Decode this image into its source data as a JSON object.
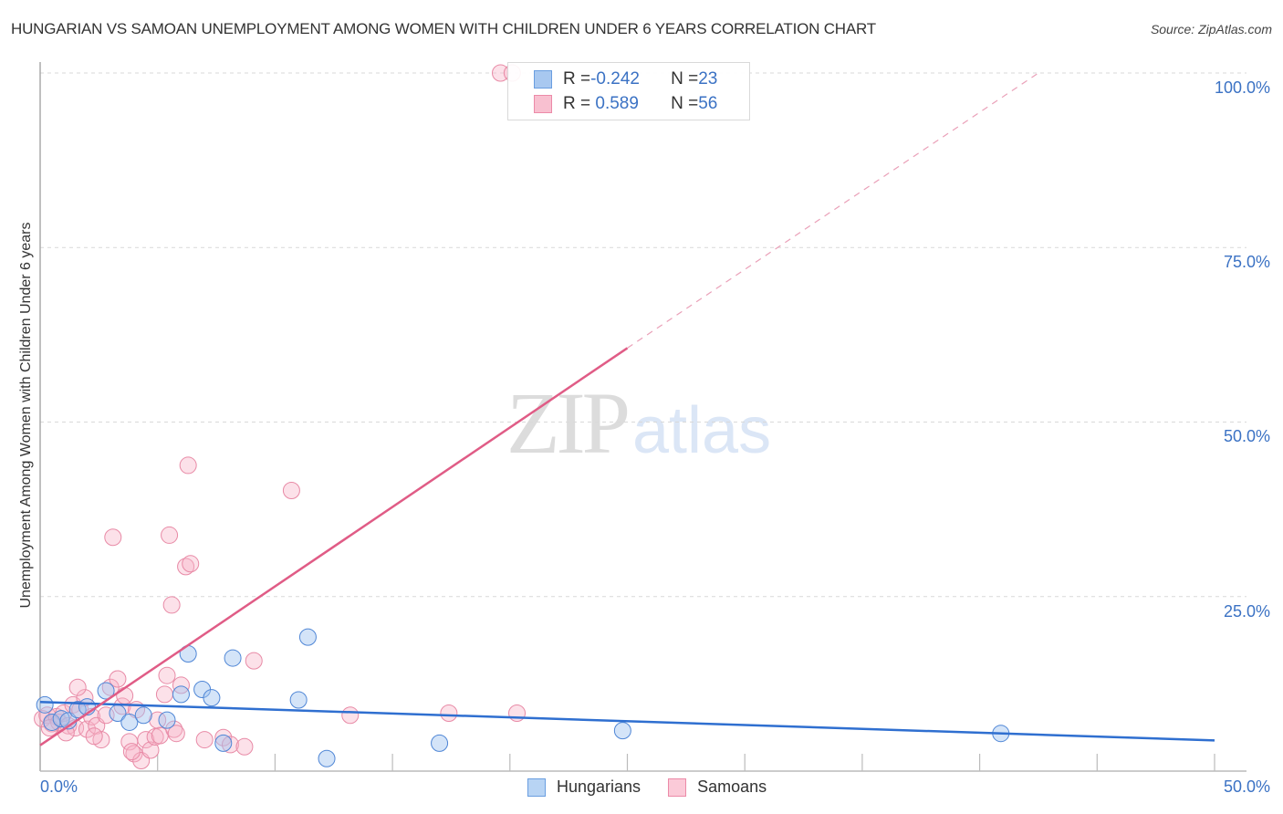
{
  "header": {
    "title": "HUNGARIAN VS SAMOAN UNEMPLOYMENT AMONG WOMEN WITH CHILDREN UNDER 6 YEARS CORRELATION CHART",
    "source": "Source: ZipAtlas.com"
  },
  "watermark": {
    "zip": "ZIP",
    "atlas": "atlas"
  },
  "legend_box": {
    "rows": [
      {
        "r_label": "R = ",
        "r_value": "-0.242",
        "n_label": "N = ",
        "n_value": "23",
        "color": "#a8c8f0",
        "border": "#6a9ee0"
      },
      {
        "r_label": "R = ",
        "r_value": " 0.589",
        "n_label": "N = ",
        "n_value": "56",
        "color": "#f8c0d0",
        "border": "#ec8aa8"
      }
    ]
  },
  "bottom_legend": [
    {
      "label": "Hungarians",
      "color": "#b8d4f4",
      "border": "#6a9ee0"
    },
    {
      "label": "Samoans",
      "color": "#fbcad8",
      "border": "#ec8aa8"
    }
  ],
  "axes": {
    "y_label": "Unemployment Among Women with Children Under 6 years",
    "y_ticks": [
      "100.0%",
      "75.0%",
      "50.0%",
      "25.0%"
    ],
    "x_ticks": [
      "0.0%",
      "50.0%"
    ]
  },
  "colors": {
    "hungarians_fill": "rgba(160,196,240,0.45)",
    "hungarians_stroke": "#4f86d6",
    "hungarians_line": "#2f6fd0",
    "samoans_fill": "rgba(248,180,200,0.40)",
    "samoans_stroke": "#e88aa6",
    "samoans_line": "#e05c86",
    "tick_label": "#3b72c4",
    "grid": "#d9d9d9"
  },
  "chart_data": {
    "type": "scatter",
    "title": "HUNGARIAN VS SAMOAN UNEMPLOYMENT AMONG WOMEN WITH CHILDREN UNDER 6 YEARS CORRELATION CHART",
    "xlabel": "",
    "ylabel": "Unemployment Among Women with Children Under 6 years",
    "xlim": [
      0,
      50
    ],
    "ylim": [
      0,
      100
    ],
    "x_tick_labels": [
      "0.0%",
      "50.0%"
    ],
    "y_tick_labels": [
      "25.0%",
      "50.0%",
      "75.0%",
      "100.0%"
    ],
    "grid": true,
    "legend_position": "bottom",
    "series": [
      {
        "name": "Hungarians",
        "R": -0.242,
        "N": 23,
        "points": [
          [
            0.2,
            9.5
          ],
          [
            0.5,
            7.0
          ],
          [
            0.9,
            7.5
          ],
          [
            1.2,
            7.2
          ],
          [
            1.6,
            8.8
          ],
          [
            2.0,
            9.2
          ],
          [
            2.8,
            11.5
          ],
          [
            3.3,
            8.3
          ],
          [
            3.8,
            7.0
          ],
          [
            4.4,
            8.0
          ],
          [
            5.4,
            7.3
          ],
          [
            6.3,
            16.8
          ],
          [
            6.0,
            11.0
          ],
          [
            6.9,
            11.7
          ],
          [
            7.3,
            10.5
          ],
          [
            7.8,
            4.0
          ],
          [
            8.2,
            16.2
          ],
          [
            11.0,
            10.2
          ],
          [
            11.4,
            19.2
          ],
          [
            12.2,
            1.8
          ],
          [
            17.0,
            4.0
          ],
          [
            24.8,
            5.8
          ],
          [
            40.9,
            5.4
          ]
        ],
        "trendline": {
          "x": [
            0,
            50
          ],
          "y": [
            9.9,
            4.4
          ]
        }
      },
      {
        "name": "Samoans",
        "R": 0.589,
        "N": 56,
        "points": [
          [
            0.1,
            7.5
          ],
          [
            0.3,
            8.0
          ],
          [
            0.5,
            6.8
          ],
          [
            0.7,
            7.8
          ],
          [
            0.8,
            7.0
          ],
          [
            1.0,
            8.3
          ],
          [
            1.2,
            6.5
          ],
          [
            1.4,
            9.5
          ],
          [
            1.5,
            6.2
          ],
          [
            1.7,
            8.8
          ],
          [
            1.9,
            10.5
          ],
          [
            2.0,
            6.0
          ],
          [
            2.2,
            7.8
          ],
          [
            2.4,
            6.5
          ],
          [
            2.6,
            4.5
          ],
          [
            2.8,
            8.0
          ],
          [
            3.0,
            12.0
          ],
          [
            3.1,
            33.5
          ],
          [
            3.3,
            13.2
          ],
          [
            3.5,
            9.3
          ],
          [
            3.6,
            10.8
          ],
          [
            3.8,
            4.2
          ],
          [
            4.0,
            2.5
          ],
          [
            4.1,
            8.8
          ],
          [
            4.3,
            1.5
          ],
          [
            4.5,
            4.5
          ],
          [
            4.7,
            3.0
          ],
          [
            3.9,
            2.8
          ],
          [
            4.9,
            4.9
          ],
          [
            5.1,
            5.1
          ],
          [
            5.3,
            11.0
          ],
          [
            5.4,
            13.7
          ],
          [
            5.5,
            33.8
          ],
          [
            5.6,
            23.8
          ],
          [
            5.7,
            6.0
          ],
          [
            5.8,
            5.4
          ],
          [
            5.0,
            7.3
          ],
          [
            6.0,
            12.3
          ],
          [
            6.2,
            29.3
          ],
          [
            6.4,
            29.7
          ],
          [
            7.0,
            4.5
          ],
          [
            6.3,
            43.8
          ],
          [
            7.8,
            4.8
          ],
          [
            8.1,
            3.8
          ],
          [
            8.7,
            3.5
          ],
          [
            9.1,
            15.8
          ],
          [
            10.7,
            40.2
          ],
          [
            13.2,
            8.0
          ],
          [
            17.4,
            8.3
          ],
          [
            20.3,
            8.3
          ],
          [
            19.6,
            100.0
          ],
          [
            20.1,
            100.0
          ],
          [
            1.1,
            5.5
          ],
          [
            2.3,
            5.0
          ],
          [
            1.6,
            12.0
          ],
          [
            0.4,
            6.2
          ]
        ],
        "trendline": {
          "x": [
            0,
            25
          ],
          "y": [
            3.7,
            60.6
          ],
          "extrapolated_dashed_to": [
            42.5,
            100
          ]
        }
      }
    ]
  }
}
